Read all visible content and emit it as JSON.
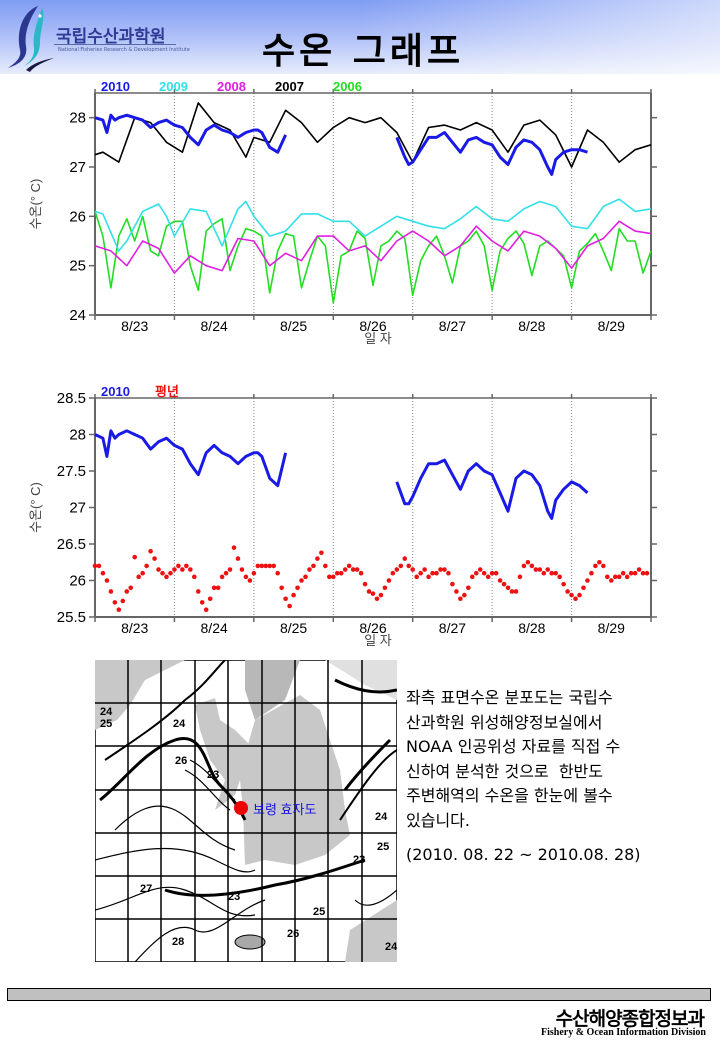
{
  "header": {
    "logo_kr": "국립수산과학원",
    "logo_en": "National Fisheries Research & Development Institute",
    "title": "수온 그래프"
  },
  "colors": {
    "s2010": "#1a1ae6",
    "s2009": "#33e0e8",
    "s2008": "#e020e0",
    "s2007": "#000000",
    "s2006": "#22dd22",
    "normal": "#ee1111",
    "axis": "#666666"
  },
  "chart_data": [
    {
      "type": "line",
      "title": "",
      "xlabel": "일 자",
      "ylabel": "수온(° C)",
      "xlim": [
        23,
        30
      ],
      "ylim": [
        24,
        28.5
      ],
      "yticks": [
        24,
        25,
        26,
        27,
        28
      ],
      "ytick_labels": [
        "24",
        "25",
        "26",
        "27",
        "28"
      ],
      "categories": [
        "8/23",
        "8/24",
        "8/25",
        "8/26",
        "8/27",
        "8/28",
        "8/29"
      ],
      "grid": "vertical dotted",
      "legend": "top-left",
      "series": [
        {
          "name": "2010",
          "color_key": "s2010",
          "x": [
            23.0,
            23.1,
            23.15,
            23.2,
            23.25,
            23.3,
            23.4,
            23.5,
            23.6,
            23.7,
            23.8,
            23.9,
            24.0,
            24.1,
            24.2,
            24.3,
            24.4,
            24.5,
            24.6,
            24.7,
            24.8,
            24.9,
            25.0,
            25.05,
            25.1,
            25.2,
            25.3,
            25.4,
            null,
            26.8,
            26.9,
            26.95,
            27.0,
            27.1,
            27.2,
            27.3,
            27.4,
            27.5,
            27.6,
            27.7,
            27.8,
            27.9,
            28.0,
            28.1,
            28.2,
            28.3,
            28.4,
            28.5,
            28.6,
            28.7,
            28.75,
            28.8,
            28.9,
            29.0,
            29.1,
            29.2
          ],
          "y": [
            28.0,
            27.95,
            27.7,
            28.05,
            27.95,
            28.0,
            28.05,
            28.0,
            27.95,
            27.8,
            27.9,
            27.95,
            27.85,
            27.8,
            27.6,
            27.45,
            27.75,
            27.85,
            27.75,
            27.7,
            27.6,
            27.7,
            27.75,
            27.75,
            27.7,
            27.4,
            27.3,
            27.65,
            null,
            27.6,
            27.2,
            27.05,
            27.1,
            27.35,
            27.6,
            27.6,
            27.7,
            27.5,
            27.3,
            27.55,
            27.6,
            27.5,
            27.45,
            27.2,
            27.05,
            27.4,
            27.55,
            27.5,
            27.35,
            27.0,
            26.85,
            27.15,
            27.3,
            27.35,
            27.35,
            27.3
          ]
        },
        {
          "name": "2009",
          "color_key": "s2009",
          "x": [
            23.0,
            23.1,
            23.3,
            23.4,
            23.6,
            23.8,
            23.9,
            24.0,
            24.2,
            24.4,
            24.6,
            24.8,
            24.9,
            25.0,
            25.2,
            25.4,
            25.6,
            25.8,
            26.0,
            26.2,
            26.4,
            26.6,
            26.8,
            27.0,
            27.2,
            27.4,
            27.6,
            27.8,
            28.0,
            28.2,
            28.4,
            28.6,
            28.8,
            29.0,
            29.2,
            29.4,
            29.6,
            29.8,
            30.0
          ],
          "y": [
            26.1,
            26.05,
            25.3,
            25.5,
            26.1,
            26.25,
            26.0,
            25.6,
            26.15,
            26.1,
            25.4,
            26.15,
            26.3,
            26.0,
            25.6,
            25.7,
            26.05,
            26.05,
            25.9,
            25.9,
            25.6,
            25.8,
            26.0,
            25.9,
            25.8,
            25.75,
            25.95,
            26.2,
            25.95,
            25.9,
            26.15,
            26.3,
            26.2,
            25.8,
            25.75,
            26.2,
            26.35,
            26.1,
            26.15
          ]
        },
        {
          "name": "2008",
          "color_key": "s2008",
          "x": [
            23.0,
            23.2,
            23.4,
            23.6,
            23.8,
            24.0,
            24.2,
            24.4,
            24.6,
            24.8,
            25.0,
            25.2,
            25.4,
            25.6,
            25.8,
            26.0,
            26.2,
            26.4,
            26.6,
            26.8,
            27.0,
            27.2,
            27.4,
            27.6,
            27.8,
            28.0,
            28.2,
            28.4,
            28.6,
            28.8,
            29.0,
            29.2,
            29.4,
            29.6,
            29.8,
            30.0
          ],
          "y": [
            25.4,
            25.3,
            25.0,
            25.5,
            25.35,
            24.85,
            25.2,
            25.0,
            24.9,
            25.55,
            25.5,
            25.0,
            25.25,
            25.1,
            25.6,
            25.6,
            25.3,
            25.4,
            25.1,
            25.5,
            25.7,
            25.5,
            25.2,
            25.4,
            25.8,
            25.5,
            25.3,
            25.7,
            25.6,
            25.35,
            24.95,
            25.4,
            25.55,
            25.9,
            25.7,
            25.65
          ]
        },
        {
          "name": "2007",
          "color_key": "s2007",
          "x": [
            23.0,
            23.1,
            23.3,
            23.5,
            23.7,
            23.9,
            24.1,
            24.3,
            24.5,
            24.7,
            24.9,
            25.0,
            25.2,
            25.4,
            25.6,
            25.8,
            26.0,
            26.2,
            26.4,
            26.6,
            26.8,
            27.0,
            27.2,
            27.4,
            27.6,
            27.8,
            28.0,
            28.2,
            28.4,
            28.6,
            28.8,
            29.0,
            29.2,
            29.4,
            29.6,
            29.8,
            30.0
          ],
          "y": [
            27.25,
            27.3,
            27.1,
            28.0,
            27.9,
            27.5,
            27.3,
            28.3,
            27.9,
            27.75,
            27.2,
            27.6,
            27.5,
            28.15,
            27.9,
            27.5,
            27.8,
            28.0,
            27.9,
            28.0,
            27.7,
            27.1,
            27.8,
            27.85,
            27.75,
            27.9,
            27.75,
            27.3,
            27.85,
            27.95,
            27.65,
            27.0,
            27.75,
            27.5,
            27.1,
            27.35,
            27.45
          ]
        },
        {
          "name": "2006",
          "color_key": "s2006",
          "x": [
            23.0,
            23.1,
            23.2,
            23.3,
            23.4,
            23.5,
            23.6,
            23.7,
            23.8,
            23.9,
            24.0,
            24.1,
            24.2,
            24.3,
            24.4,
            24.5,
            24.6,
            24.7,
            24.8,
            24.9,
            25.0,
            25.1,
            25.2,
            25.3,
            25.4,
            25.5,
            25.6,
            25.7,
            25.8,
            25.9,
            26.0,
            26.1,
            26.2,
            26.3,
            26.4,
            26.5,
            26.6,
            26.7,
            26.8,
            26.9,
            27.0,
            27.1,
            27.2,
            27.3,
            27.4,
            27.5,
            27.6,
            27.7,
            27.8,
            27.9,
            28.0,
            28.1,
            28.2,
            28.3,
            28.4,
            28.5,
            28.6,
            28.7,
            28.8,
            28.9,
            29.0,
            29.1,
            29.2,
            29.3,
            29.4,
            29.5,
            29.6,
            29.7,
            29.8,
            29.9,
            30.0
          ],
          "y": [
            26.1,
            25.6,
            24.55,
            25.6,
            25.95,
            25.5,
            26.0,
            25.3,
            25.2,
            25.8,
            25.9,
            25.9,
            25.0,
            24.5,
            25.7,
            25.85,
            25.95,
            24.9,
            25.4,
            25.75,
            25.7,
            25.6,
            24.45,
            25.3,
            25.65,
            25.6,
            24.55,
            25.1,
            25.6,
            25.4,
            24.25,
            25.2,
            25.3,
            25.7,
            25.55,
            24.6,
            25.4,
            25.5,
            25.7,
            25.55,
            24.4,
            25.1,
            25.4,
            25.6,
            25.2,
            24.65,
            25.4,
            25.5,
            25.7,
            25.4,
            24.5,
            25.3,
            25.55,
            25.7,
            25.45,
            24.8,
            25.4,
            25.5,
            25.35,
            25.2,
            24.55,
            25.3,
            25.45,
            25.65,
            25.3,
            24.9,
            25.75,
            25.5,
            25.5,
            24.85,
            25.3
          ]
        }
      ]
    },
    {
      "type": "line",
      "title": "",
      "xlabel": "일 자",
      "ylabel": "수온(° C)",
      "xlim": [
        23,
        30
      ],
      "ylim": [
        25.5,
        28.5
      ],
      "yticks": [
        25.5,
        26,
        26.5,
        27,
        27.5,
        28,
        28.5
      ],
      "ytick_labels": [
        "25.5",
        "26",
        "26.5",
        "27",
        "27.5",
        "28",
        "28.5"
      ],
      "categories": [
        "8/23",
        "8/24",
        "8/25",
        "8/26",
        "8/27",
        "8/28",
        "8/29"
      ],
      "grid": "vertical dotted",
      "legend": "top-left",
      "series": [
        {
          "name": "2010",
          "color_key": "s2010",
          "style": "line",
          "x": [
            23.0,
            23.1,
            23.15,
            23.2,
            23.25,
            23.3,
            23.4,
            23.5,
            23.6,
            23.7,
            23.8,
            23.9,
            24.0,
            24.1,
            24.2,
            24.3,
            24.4,
            24.5,
            24.6,
            24.7,
            24.8,
            24.9,
            25.0,
            25.05,
            25.1,
            25.2,
            25.3,
            25.4,
            null,
            26.8,
            26.9,
            26.95,
            27.0,
            27.1,
            27.2,
            27.3,
            27.4,
            27.5,
            27.6,
            27.7,
            27.8,
            27.9,
            28.0,
            28.1,
            28.2,
            28.3,
            28.4,
            28.5,
            28.6,
            28.7,
            28.75,
            28.8,
            28.9,
            29.0,
            29.1,
            29.2
          ],
          "y": [
            28.0,
            27.95,
            27.7,
            28.05,
            27.95,
            28.0,
            28.05,
            28.0,
            27.95,
            27.8,
            27.9,
            27.95,
            27.85,
            27.8,
            27.6,
            27.45,
            27.75,
            27.85,
            27.75,
            27.7,
            27.6,
            27.7,
            27.75,
            27.75,
            27.7,
            27.4,
            27.3,
            27.75,
            null,
            27.35,
            27.05,
            27.05,
            27.15,
            27.4,
            27.6,
            27.6,
            27.65,
            27.45,
            27.25,
            27.5,
            27.6,
            27.5,
            27.45,
            27.2,
            26.95,
            27.4,
            27.5,
            27.45,
            27.3,
            26.95,
            26.85,
            27.1,
            27.25,
            27.35,
            27.3,
            27.2
          ]
        },
        {
          "name": "평년",
          "color_key": "normal",
          "style": "dots",
          "x": [
            23.0,
            23.05,
            23.1,
            23.15,
            23.2,
            23.25,
            23.3,
            23.35,
            23.4,
            23.45,
            23.5,
            23.55,
            23.6,
            23.65,
            23.7,
            23.75,
            23.8,
            23.85,
            23.9,
            23.95,
            24.0,
            24.05,
            24.1,
            24.15,
            24.2,
            24.25,
            24.3,
            24.35,
            24.4,
            24.45,
            24.5,
            24.55,
            24.6,
            24.65,
            24.7,
            24.75,
            24.8,
            24.85,
            24.9,
            24.95,
            25.0,
            25.05,
            25.1,
            25.15,
            25.2,
            25.25,
            25.3,
            25.35,
            25.4,
            25.45,
            25.5,
            25.55,
            25.6,
            25.65,
            25.7,
            25.75,
            25.8,
            25.85,
            25.9,
            25.95,
            26.0,
            26.05,
            26.1,
            26.15,
            26.2,
            26.25,
            26.3,
            26.35,
            26.4,
            26.45,
            26.5,
            26.55,
            26.6,
            26.65,
            26.7,
            26.75,
            26.8,
            26.85,
            26.9,
            26.95,
            27.0,
            27.05,
            27.1,
            27.15,
            27.2,
            27.25,
            27.3,
            27.35,
            27.4,
            27.45,
            27.5,
            27.55,
            27.6,
            27.65,
            27.7,
            27.75,
            27.8,
            27.85,
            27.9,
            27.95,
            28.0,
            28.05,
            28.1,
            28.15,
            28.2,
            28.25,
            28.3,
            28.35,
            28.4,
            28.45,
            28.5,
            28.55,
            28.6,
            28.65,
            28.7,
            28.75,
            28.8,
            28.85,
            28.9,
            28.95,
            29.0,
            29.05,
            29.1,
            29.15,
            29.2,
            29.25,
            29.3,
            29.35,
            29.4,
            29.45,
            29.5,
            29.55,
            29.6,
            29.65,
            29.7,
            29.75,
            29.8,
            29.85,
            29.9,
            29.95
          ],
          "y": [
            26.2,
            26.2,
            26.1,
            26.0,
            25.85,
            25.7,
            25.6,
            25.72,
            25.85,
            25.9,
            26.32,
            26.05,
            26.1,
            26.2,
            26.4,
            26.3,
            26.15,
            26.1,
            26.05,
            26.1,
            26.15,
            26.2,
            26.15,
            26.2,
            26.15,
            26.05,
            25.85,
            25.7,
            25.6,
            25.75,
            25.9,
            25.9,
            26.05,
            26.1,
            26.15,
            26.45,
            26.3,
            26.15,
            26.05,
            26.0,
            26.1,
            26.2,
            26.2,
            26.2,
            26.2,
            26.2,
            26.1,
            25.9,
            25.75,
            25.65,
            25.8,
            25.9,
            26.0,
            26.05,
            26.15,
            26.2,
            26.3,
            26.38,
            26.2,
            26.05,
            26.05,
            26.1,
            26.1,
            26.15,
            26.2,
            26.15,
            26.15,
            26.1,
            25.95,
            25.85,
            25.82,
            25.75,
            25.8,
            25.9,
            26.0,
            26.1,
            26.15,
            26.2,
            26.3,
            26.2,
            26.15,
            26.05,
            26.1,
            26.15,
            26.05,
            26.1,
            26.1,
            26.15,
            26.15,
            26.1,
            25.95,
            25.85,
            25.75,
            25.8,
            25.9,
            26.05,
            26.1,
            26.15,
            26.1,
            26.05,
            26.1,
            26.1,
            26.0,
            25.95,
            25.9,
            25.85,
            25.85,
            26.05,
            26.2,
            26.25,
            26.2,
            26.15,
            26.15,
            26.1,
            26.15,
            26.1,
            26.1,
            26.05,
            25.95,
            25.85,
            25.8,
            25.75,
            25.8,
            25.9,
            26.0,
            26.1,
            26.2,
            26.25,
            26.2,
            26.05,
            26.0,
            26.05,
            26.05,
            26.1,
            26.05,
            26.1,
            26.1,
            26.15,
            26.1,
            26.1
          ]
        }
      ]
    }
  ],
  "map": {
    "location_label": "보령 효자도",
    "contour_labels": [
      "24",
      "25",
      "24",
      "26",
      "23",
      "24",
      "25",
      "27",
      "28",
      "26",
      "25",
      "23",
      "23",
      "24"
    ]
  },
  "description": {
    "lines": [
      "좌측 표면수온 분포도는 국립수",
      "산과학원 위성해양정보실에서",
      "NOAA 인공위성 자료를 직접 수",
      "신하여 분석한 것으로  한반도",
      "주변해역의 수온을 한눈에 볼수",
      "있습니다."
    ],
    "period": "(2010. 08. 22 ~ 2010.08. 28)"
  },
  "footer": {
    "division_kr": "수산해양종합정보과",
    "division_en": "Fishery & Ocean Information Division"
  }
}
